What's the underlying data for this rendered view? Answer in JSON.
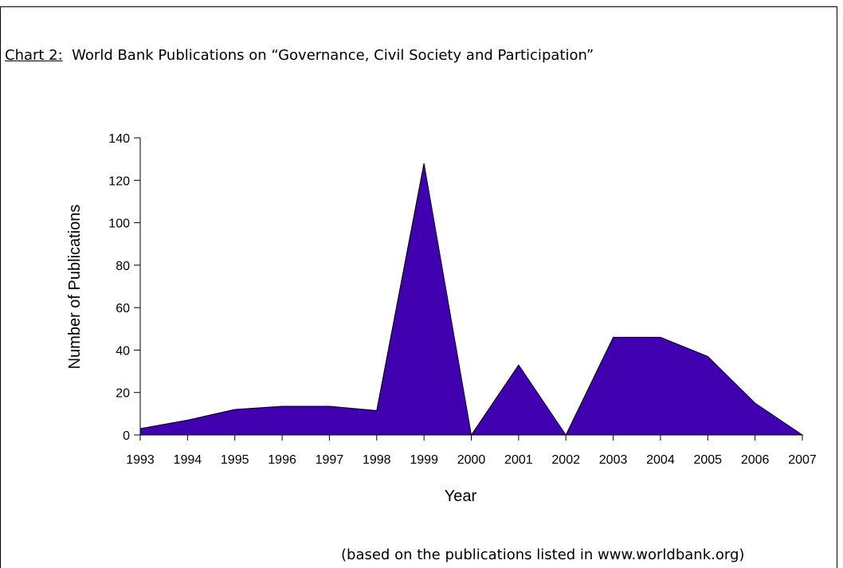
{
  "caption": {
    "label": "Chart 2:",
    "text": "World Bank Publications on “Governance, Civil Society and Participation”"
  },
  "source_note": "(based on the publications listed in www.worldbank.org)",
  "chart_data": {
    "type": "area",
    "title": "",
    "xlabel": "Year",
    "ylabel": "Number of Publications",
    "categories": [
      "1993",
      "1994",
      "1995",
      "1996",
      "1997",
      "1998",
      "1999",
      "2000",
      "2001",
      "2002",
      "2003",
      "2004",
      "2005",
      "2006",
      "2007"
    ],
    "values": [
      3,
      7,
      12,
      13.5,
      13.5,
      11.5,
      128,
      0,
      33,
      0,
      46,
      46,
      37,
      15,
      0
    ],
    "ylim": [
      0,
      140
    ],
    "yticks": [
      0,
      20,
      40,
      60,
      80,
      100,
      120,
      140
    ],
    "grid": false,
    "legend": "none",
    "fill_color": "#4000b0"
  }
}
